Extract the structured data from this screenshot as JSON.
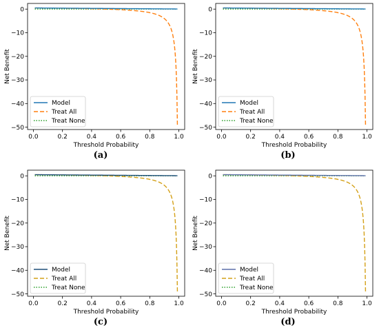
{
  "chart_data": [
    {
      "type": "line",
      "panel_label": "(a)",
      "xlabel": "Threshold Probability",
      "ylabel": "Net Benefit",
      "xlim": [
        -0.04,
        1.04
      ],
      "ylim": [
        -51,
        2.4
      ],
      "xticks": [
        0.0,
        0.2,
        0.4,
        0.6,
        0.8,
        1.0
      ],
      "xtick_labels": [
        "0.0",
        "0.2",
        "0.4",
        "0.6",
        "0.8",
        "1.0"
      ],
      "yticks": [
        0,
        -10,
        -20,
        -30,
        -40,
        -50
      ],
      "ytick_labels": [
        "0",
        "−10",
        "−20",
        "−30",
        "−40",
        "−50"
      ],
      "grid": false,
      "legend_position": "lower-left",
      "prevalence": 0.5,
      "model_end": 0.05,
      "threshold_range": [
        0.01,
        0.99
      ],
      "series": [
        {
          "name": "Model",
          "style": "solid",
          "color": "#1f77b4"
        },
        {
          "name": "Treat All",
          "style": "dashed",
          "color": "#ff7f0e"
        },
        {
          "name": "Treat None",
          "style": "dotted",
          "color": "#2ca02c"
        }
      ]
    },
    {
      "type": "line",
      "panel_label": "(b)",
      "xlabel": "Threshold Probability",
      "ylabel": "Net Benefit",
      "xlim": [
        -0.04,
        1.04
      ],
      "ylim": [
        -51,
        2.4
      ],
      "xticks": [
        0.0,
        0.2,
        0.4,
        0.6,
        0.8,
        1.0
      ],
      "xtick_labels": [
        "0.0",
        "0.2",
        "0.4",
        "0.6",
        "0.8",
        "1.0"
      ],
      "yticks": [
        0,
        -10,
        -20,
        -30,
        -40,
        -50
      ],
      "ytick_labels": [
        "0",
        "−10",
        "−20",
        "−30",
        "−40",
        "−50"
      ],
      "grid": false,
      "legend_position": "lower-left",
      "prevalence": 0.5,
      "model_end": 0.05,
      "threshold_range": [
        0.01,
        0.99
      ],
      "series": [
        {
          "name": "Model",
          "style": "solid",
          "color": "#1f77b4"
        },
        {
          "name": "Treat All",
          "style": "dashed",
          "color": "#ff7f0e"
        },
        {
          "name": "Treat None",
          "style": "dotted",
          "color": "#2ca02c"
        }
      ]
    },
    {
      "type": "line",
      "panel_label": "(c)",
      "xlabel": "Threshold Probability",
      "ylabel": "Net Benefit",
      "xlim": [
        -0.04,
        1.04
      ],
      "ylim": [
        -51,
        2.4
      ],
      "xticks": [
        0.0,
        0.2,
        0.4,
        0.6,
        0.8,
        1.0
      ],
      "xtick_labels": [
        "0.0",
        "0.2",
        "0.4",
        "0.6",
        "0.8",
        "1.0"
      ],
      "yticks": [
        0,
        -10,
        -20,
        -30,
        -40,
        -50
      ],
      "ytick_labels": [
        "0",
        "−10",
        "−20",
        "−30",
        "−40",
        "−50"
      ],
      "grid": false,
      "legend_position": "lower-left",
      "prevalence": 0.5,
      "model_end": 0.05,
      "threshold_range": [
        0.01,
        0.99
      ],
      "series": [
        {
          "name": "Model",
          "style": "solid",
          "color": "#1f4e79"
        },
        {
          "name": "Treat All",
          "style": "dashed",
          "color": "#d4a017"
        },
        {
          "name": "Treat None",
          "style": "dotted",
          "color": "#2ca02c"
        }
      ]
    },
    {
      "type": "line",
      "panel_label": "(d)",
      "xlabel": "Threshold Probability",
      "ylabel": "Net Benefit",
      "xlim": [
        -0.04,
        1.04
      ],
      "ylim": [
        -51,
        2.4
      ],
      "xticks": [
        0.0,
        0.2,
        0.4,
        0.6,
        0.8,
        1.0
      ],
      "xtick_labels": [
        "0.0",
        "0.2",
        "0.4",
        "0.6",
        "0.8",
        "1.0"
      ],
      "yticks": [
        0,
        -10,
        -20,
        -30,
        -40,
        -50
      ],
      "ytick_labels": [
        "0",
        "−10",
        "−20",
        "−30",
        "−40",
        "−50"
      ],
      "grid": false,
      "legend_position": "lower-left",
      "prevalence": 0.5,
      "model_end": 0.05,
      "threshold_range": [
        0.01,
        0.99
      ],
      "series": [
        {
          "name": "Model",
          "style": "solid",
          "color": "#5b6fa8"
        },
        {
          "name": "Treat All",
          "style": "dashed",
          "color": "#d4a017"
        },
        {
          "name": "Treat None",
          "style": "dotted",
          "color": "#2ca02c"
        }
      ]
    }
  ]
}
